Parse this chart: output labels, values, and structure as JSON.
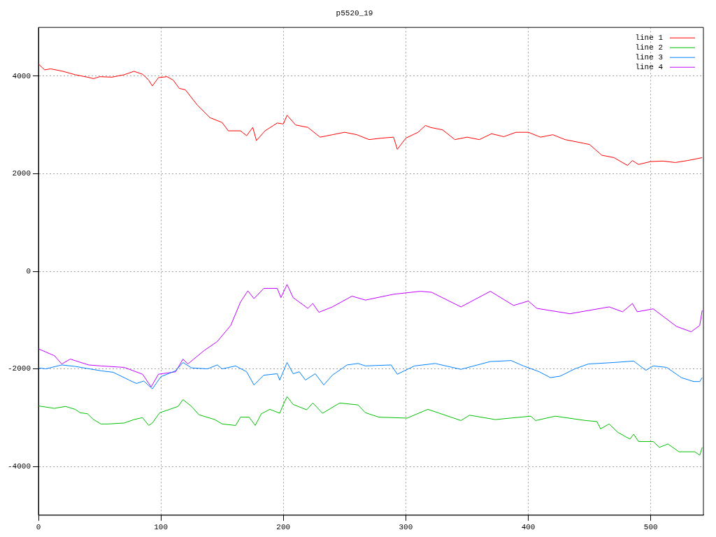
{
  "chart_data": {
    "type": "line",
    "title": "p5520_19",
    "xlim": [
      0,
      543
    ],
    "xticks": [
      0,
      100,
      200,
      300,
      400,
      500
    ],
    "ylim": [
      -5000,
      5000
    ],
    "yticks": [
      -4000,
      -2000,
      0,
      2000,
      4000
    ],
    "grid": true,
    "legend": "top right",
    "marker": "none",
    "line_style": "solid",
    "series": [
      {
        "name": "line 1",
        "color": "#ff0000",
        "x": [
          0,
          5,
          10,
          20,
          30,
          40,
          45,
          50,
          60,
          70,
          78,
          85,
          90,
          93,
          98,
          105,
          110,
          115,
          120,
          130,
          140,
          150,
          155,
          165,
          170,
          175,
          178,
          185,
          195,
          200,
          203,
          210,
          220,
          230,
          240,
          250,
          260,
          270,
          280,
          290,
          293,
          300,
          310,
          316,
          320,
          330,
          340,
          350,
          360,
          370,
          380,
          390,
          400,
          410,
          420,
          430,
          440,
          450,
          460,
          470,
          481,
          485,
          490,
          500,
          510,
          520,
          530,
          542
        ],
        "values": [
          4250,
          4130,
          4150,
          4100,
          4030,
          3980,
          3950,
          3990,
          3980,
          4030,
          4100,
          4040,
          3920,
          3800,
          3970,
          3990,
          3920,
          3750,
          3720,
          3400,
          3150,
          3050,
          2880,
          2880,
          2780,
          2950,
          2680,
          2880,
          3040,
          3020,
          3200,
          3000,
          2950,
          2750,
          2800,
          2850,
          2800,
          2700,
          2730,
          2750,
          2500,
          2730,
          2850,
          2990,
          2950,
          2900,
          2700,
          2750,
          2700,
          2820,
          2760,
          2850,
          2850,
          2750,
          2800,
          2700,
          2650,
          2600,
          2380,
          2330,
          2170,
          2270,
          2190,
          2250,
          2260,
          2230,
          2270,
          2330
        ]
      },
      {
        "name": "line 2",
        "color": "#00c000",
        "x": [
          0,
          13,
          22,
          30,
          34,
          40,
          45,
          51,
          57,
          70,
          78,
          85,
          90,
          93,
          99,
          114,
          118,
          125,
          131,
          144,
          150,
          161,
          165,
          172,
          177,
          182,
          189,
          197,
          200,
          203,
          208,
          219,
          224,
          232,
          246,
          261,
          267,
          278,
          301,
          318,
          345,
          352,
          373,
          402,
          406,
          422,
          447,
          456,
          459,
          466,
          473,
          483,
          486,
          490,
          502,
          507,
          514,
          523,
          536,
          540,
          542
        ],
        "values": [
          -2760,
          -2810,
          -2770,
          -2830,
          -2900,
          -2920,
          -3040,
          -3130,
          -3130,
          -3110,
          -3040,
          -3000,
          -3160,
          -3110,
          -2900,
          -2770,
          -2630,
          -2770,
          -2940,
          -3040,
          -3130,
          -3160,
          -2990,
          -2990,
          -3160,
          -2920,
          -2830,
          -2910,
          -2730,
          -2570,
          -2730,
          -2840,
          -2700,
          -2910,
          -2700,
          -2740,
          -2900,
          -2990,
          -3010,
          -2830,
          -3060,
          -2950,
          -3040,
          -2970,
          -3060,
          -2970,
          -3060,
          -3080,
          -3230,
          -3130,
          -3300,
          -3440,
          -3340,
          -3490,
          -3490,
          -3610,
          -3540,
          -3700,
          -3700,
          -3770,
          -3610
        ]
      },
      {
        "name": "line 3",
        "color": "#0080ff",
        "x": [
          0,
          6,
          19,
          30,
          51,
          61,
          74,
          80,
          86,
          93,
          100,
          112,
          118,
          125,
          138,
          146,
          150,
          161,
          170,
          176,
          184,
          195,
          197,
          203,
          208,
          213,
          218,
          226,
          233,
          240,
          252,
          261,
          267,
          288,
          293,
          307,
          324,
          345,
          369,
          386,
          396,
          409,
          418,
          426,
          438,
          449,
          470,
          486,
          496,
          502,
          513,
          525,
          535,
          540,
          542
        ],
        "values": [
          -1980,
          -2000,
          -1920,
          -1950,
          -2040,
          -2070,
          -2230,
          -2300,
          -2250,
          -2410,
          -2160,
          -2040,
          -1870,
          -1980,
          -2000,
          -1920,
          -2000,
          -1940,
          -2060,
          -2330,
          -2130,
          -2100,
          -2230,
          -1870,
          -2100,
          -2060,
          -2230,
          -2100,
          -2330,
          -2130,
          -1920,
          -1890,
          -1940,
          -1920,
          -2110,
          -1940,
          -1890,
          -2010,
          -1850,
          -1830,
          -1940,
          -2060,
          -2180,
          -2150,
          -2000,
          -1900,
          -1870,
          -1840,
          -2030,
          -1940,
          -1970,
          -2180,
          -2260,
          -2260,
          -2180
        ]
      },
      {
        "name": "line 4",
        "color": "#c000ff",
        "x": [
          0,
          13,
          19,
          26,
          41,
          51,
          70,
          85,
          92,
          98,
          112,
          118,
          122,
          135,
          146,
          157,
          165,
          171,
          176,
          184,
          195,
          198,
          203,
          208,
          220,
          224,
          229,
          240,
          256,
          267,
          290,
          312,
          321,
          345,
          369,
          388,
          400,
          407,
          434,
          466,
          477,
          485,
          489,
          502,
          521,
          533,
          540,
          542
        ],
        "values": [
          -1590,
          -1730,
          -1900,
          -1800,
          -1920,
          -1940,
          -1970,
          -2110,
          -2370,
          -2110,
          -2060,
          -1800,
          -1900,
          -1630,
          -1440,
          -1110,
          -630,
          -400,
          -560,
          -350,
          -350,
          -540,
          -270,
          -540,
          -760,
          -660,
          -840,
          -730,
          -510,
          -590,
          -470,
          -410,
          -430,
          -730,
          -410,
          -700,
          -610,
          -760,
          -870,
          -730,
          -830,
          -660,
          -830,
          -770,
          -1130,
          -1240,
          -1110,
          -800
        ]
      }
    ]
  }
}
